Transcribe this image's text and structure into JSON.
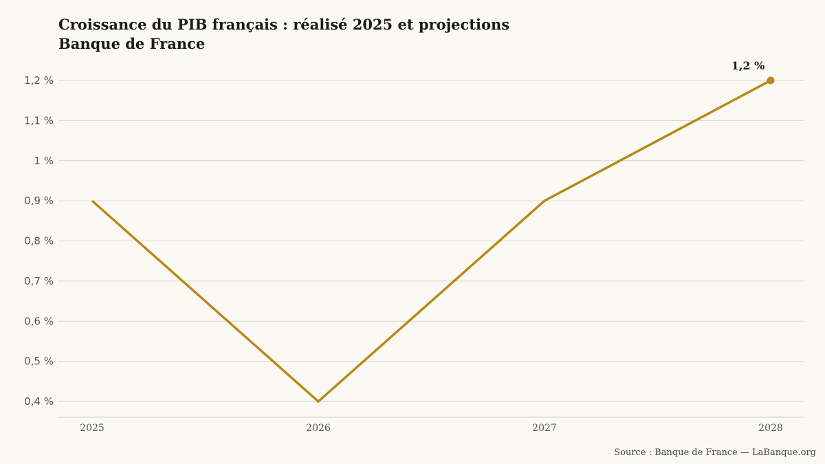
{
  "chart_data": {
    "type": "line",
    "title_lines": [
      "Croissance du PIB français : réalisé 2025 et projections",
      "Banque de France"
    ],
    "x": [
      "2025",
      "2026",
      "2027",
      "2028"
    ],
    "series": [
      {
        "values": [
          0.9,
          0.4,
          0.9,
          1.2
        ],
        "color": "#b8891a"
      }
    ],
    "ylim": [
      0.4,
      1.2
    ],
    "yticks": [
      0.4,
      0.5,
      0.6,
      0.7,
      0.8,
      0.9,
      1.0,
      1.1,
      1.2
    ],
    "ytick_labels": [
      "0,4 %",
      "0,5 %",
      "0,6 %",
      "0,7 %",
      "0,8 %",
      "0,9 %",
      "1 %",
      "1,1 %",
      "1,2 %"
    ],
    "annotation": {
      "x": "2028",
      "value": 1.2,
      "text": "1,2 %"
    },
    "grid": "horizontal",
    "grid_color": "#d8d4c8",
    "source": "Source : Banque de France — LaBanque.org"
  }
}
